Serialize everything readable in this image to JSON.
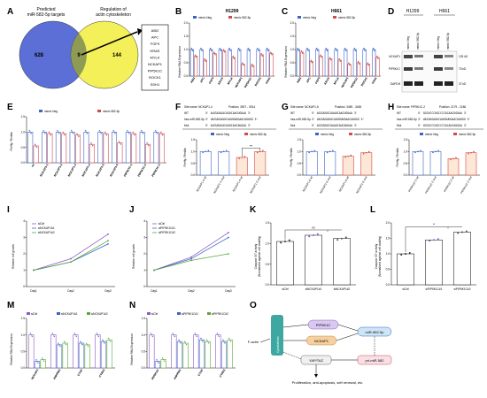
{
  "colors": {
    "neg": "#3b64c9",
    "mimic": "#d24a4a",
    "venn_left": "#5b6fd6",
    "venn_right": "#f3f05a",
    "venn_overlap": "#8f9a55",
    "pink": "#f2b6c6",
    "yellow": "#f5e27a",
    "ctrl_purple": "#8a5bc4",
    "si1": "#3b64c9",
    "si2": "#5aa83a",
    "teal": "#3fa7a1"
  },
  "panels": {
    "A": {
      "letter": "A",
      "left_label": [
        "Predicted",
        "miR-582-5p targets"
      ],
      "right_label": [
        "Regulation of",
        "actin cytoskeleton"
      ],
      "left_count": "628",
      "overlap_count": "9",
      "right_count": "144",
      "genes": [
        "ABI2",
        "APC",
        "FGF9",
        "KRAS",
        "MYLK",
        "NCKAP1",
        "PIP5K1C",
        "ROCK1",
        "SSH1"
      ]
    },
    "B": {
      "letter": "B",
      "title": "H1299",
      "ylabel": "Relative RNA Expression",
      "legend": [
        "mimic Neg",
        "mimic 582-5p"
      ],
      "genes": [
        "ABI2",
        "APC",
        "FGF9",
        "KRAS",
        "MYLK",
        "NCKAP1",
        "PIP5K1C",
        "ROCK1",
        "SSH1"
      ],
      "yticks": [
        "0.0",
        "0.5",
        "1.0",
        "1.5",
        "2.0"
      ]
    },
    "C": {
      "letter": "C",
      "title": "H661",
      "ylabel": "Relative RNA Expression",
      "legend": [
        "mimic Neg",
        "mimic 582-5p"
      ],
      "genes": [
        "ABI2",
        "APC",
        "FGF9",
        "KRAS",
        "MYLK",
        "NCKAP1",
        "PIP5K1C",
        "ROCK1",
        "SSH1"
      ],
      "yticks": [
        "0.0",
        "0.5",
        "1.0",
        "1.5",
        "2.0"
      ]
    },
    "D": {
      "letter": "D",
      "cell_lines": [
        "H1299",
        "H661"
      ],
      "lanes": [
        "mimic Neg",
        "mimic 582-5p",
        "mimic Neg",
        "mimic 582-5p"
      ],
      "bands": [
        "NCKAP1",
        "PIP5K1C",
        "GAPDH"
      ],
      "sizes": [
        "125 kD",
        "75 kD",
        "37 kD"
      ]
    },
    "E": {
      "letter": "E",
      "ylabel": "Firefly / Renilla",
      "legend": [
        "mimic Neg",
        "mimic 582-5p"
      ],
      "constructs": [
        "wt",
        "NCKAP1-1",
        "NCKAP1-2",
        "NCKAP1-3",
        "NCKAP1-4",
        "NCKAP1-5",
        "NCKAP1-6",
        "PIP5K1C-1",
        "PIP5K1C-2",
        "PIP5K1C-3"
      ],
      "yticks": [
        "0.0",
        "0.5",
        "1.0",
        "1.5"
      ]
    },
    "F": {
      "letter": "F",
      "site": "Site name: NCKAP1-4",
      "position": "Position: 3907 - 3914",
      "rows": [
        {
          "label": "WT",
          "seq": "5' AUCUGAGACAGUCAACUGUAA 3'"
        },
        {
          "label": "hsa-miR-582-5p",
          "seq": "3' UACUUGAUUCAUUGUUGAACAUUGG 5'"
        },
        {
          "label": "Mut",
          "seq": "5' AUCUGUGACAGUCAUCAUGAA 3'"
        }
      ],
      "legend": [
        "mimic Neg",
        "mimic 582-5p"
      ],
      "ylabel": "Firefly / Renilla",
      "cats": [
        "NCKAP1-4 wt",
        "NCKAP1-4 mut",
        "NCKAP1-4 wt",
        "NCKAP1-4 mut"
      ],
      "sig": "***"
    },
    "G": {
      "letter": "G",
      "site": "Site name: NCKAP1-6",
      "position": "Position: 3459 - 3465",
      "rows": [
        {
          "label": "WT",
          "seq": "5' AGCUGUGCUAAUCAACUGUAA 3'"
        },
        {
          "label": "hsa-miR-582-5p",
          "seq": "3' UACUUGAUUCAUUGUUGAACAUUGG 5'"
        },
        {
          "label": "Mut",
          "seq": "5' AGCUGUGCUAAUCAUCAUGAA 3'"
        }
      ],
      "legend": [
        "mimic Neg",
        "mimic 582-5p"
      ],
      "ylabel": "Firefly / Renilla",
      "cats": [
        "NCKAP1-6 wt",
        "NCKAP1-6 mut",
        "NCKAP1-6 wt",
        "NCKAP1-6 mut"
      ]
    },
    "H": {
      "letter": "H",
      "site": "Site name: PIP5K1C-2",
      "position": "Position: 2179 - 2186",
      "rows": [
        {
          "label": "WT",
          "seq": "5' GGCUCCCUGCCCCACAACUGUAA 3'"
        },
        {
          "label": "hsa-miR-582-5p",
          "seq": "3' UACUUGAUUCAUUGUUGAACAUUGG 5'"
        },
        {
          "label": "Mut",
          "seq": "5' GGCUCCCUGCCCCACAUCAUGAA 3'"
        }
      ],
      "legend": [
        "mimic Neg",
        "mimic 582-5p"
      ],
      "ylabel": "Firefly / Renilla",
      "cats": [
        "PIP5K1C-2 wt",
        "PIP5K1C-2 mut",
        "PIP5K1C-2 wt",
        "PIP5K1C-2 mut"
      ]
    },
    "I": {
      "letter": "I",
      "ylabel": "Relative cell growth",
      "legend": [
        "siCtrl",
        "siNCKAP1#1",
        "siNCKAP1#2"
      ],
      "days": [
        "Day1",
        "Day2",
        "Day3"
      ],
      "yticks": [
        "0",
        "1",
        "2",
        "3",
        "4"
      ]
    },
    "J": {
      "letter": "J",
      "ylabel": "Relative cell growth",
      "legend": [
        "siCtrl",
        "siPIP5K1C#1",
        "siPIP5K1C#2"
      ],
      "days": [
        "Day1",
        "Day2",
        "Day3"
      ],
      "yticks": [
        "0",
        "1",
        "2",
        "3",
        "4"
      ]
    },
    "K": {
      "letter": "K",
      "ylabel": [
        "Caspase 3/7 activity",
        "(Normalized against cell viability)"
      ],
      "cats": [
        "siCtrl",
        "siNCKAP1#1",
        "siNCKAP1#2"
      ],
      "sig": "ns"
    },
    "L": {
      "letter": "L",
      "ylabel": [
        "Caspase 3/7 activity",
        "(Normalized against cell viability)"
      ],
      "cats": [
        "siCtrl",
        "siPIP5K1C#1",
        "siPIP5K1C#2"
      ],
      "sig": "**"
    },
    "M": {
      "letter": "M",
      "ylabel": "Relative RNA Expression",
      "legend": [
        "siCtrl",
        "siNCKAP1#1",
        "siNCKAP1#2"
      ],
      "genes": [
        "NCKAP1",
        "ANKRD1",
        "CTGF",
        "CYR61"
      ]
    },
    "N": {
      "letter": "N",
      "ylabel": "Relative RNA Expression",
      "legend": [
        "siCtrl",
        "siPIP5K1C#1",
        "siPIP5K1C#2"
      ],
      "genes": [
        "PIP5K1C",
        "ANKRD1",
        "CTGF",
        "CYR61"
      ]
    },
    "O": {
      "letter": "O",
      "nodes": {
        "factin": "F-actin",
        "cyto": "Cytoskeleton",
        "pip": "PIP5K1C",
        "nck": "NCKAP1",
        "mir": "miR-582-5p",
        "yap": "YAP/TAZ",
        "primir": "pri-miR-582"
      },
      "outcome": "Proliferation, anti-apoptosis, self renewal, etc."
    }
  },
  "chart_data": [
    {
      "type": "bar",
      "panel": "B",
      "title": "H1299",
      "ylabel": "Relative RNA Expression",
      "ylim": [
        0,
        2.0
      ],
      "categories": [
        "ABI2",
        "APC",
        "FGF9",
        "KRAS",
        "MYLK",
        "NCKAP1",
        "PIP5K1C",
        "ROCK1",
        "SSH1"
      ],
      "series": [
        {
          "name": "mimic Neg",
          "values": [
            1,
            1,
            1,
            1,
            1,
            1,
            1,
            1,
            1
          ]
        },
        {
          "name": "mimic 582-5p",
          "values": [
            0.75,
            0.6,
            0.85,
            0.95,
            0.7,
            0.45,
            0.4,
            0.8,
            0.85
          ]
        }
      ]
    },
    {
      "type": "bar",
      "panel": "C",
      "title": "H661",
      "ylabel": "Relative RNA Expression",
      "ylim": [
        0,
        2.0
      ],
      "categories": [
        "ABI2",
        "APC",
        "FGF9",
        "KRAS",
        "MYLK",
        "NCKAP1",
        "PIP5K1C",
        "ROCK1",
        "SSH1"
      ],
      "series": [
        {
          "name": "mimic Neg",
          "values": [
            1,
            1,
            1,
            1,
            1,
            1,
            1,
            1,
            1
          ]
        },
        {
          "name": "mimic 582-5p",
          "values": [
            0.9,
            0.55,
            0.75,
            0.65,
            0.6,
            0.45,
            0.5,
            0.45,
            0.7
          ]
        }
      ]
    },
    {
      "type": "bar",
      "panel": "E",
      "ylabel": "Firefly / Renilla",
      "ylim": [
        0,
        1.5
      ],
      "categories": [
        "wt",
        "NCKAP1-1",
        "NCKAP1-2",
        "NCKAP1-3",
        "NCKAP1-4",
        "NCKAP1-5",
        "NCKAP1-6",
        "PIP5K1C-1",
        "PIP5K1C-2",
        "PIP5K1C-3"
      ],
      "series": [
        {
          "name": "mimic Neg",
          "values": [
            1,
            1,
            1,
            1,
            1,
            1,
            1,
            1,
            1,
            1
          ]
        },
        {
          "name": "mimic 582-5p",
          "values": [
            0.55,
            0.95,
            0.95,
            0.9,
            0.6,
            0.95,
            0.65,
            0.95,
            0.6,
            0.95
          ]
        }
      ]
    },
    {
      "type": "bar",
      "panel": "F",
      "ylabel": "Firefly / Renilla",
      "ylim": [
        0,
        1.5
      ],
      "categories": [
        "NCKAP1-4 wt",
        "NCKAP1-4 mut",
        "NCKAP1-4 wt",
        "NCKAP1-4 mut"
      ],
      "values": [
        1.0,
        1.0,
        0.75,
        1.0
      ]
    },
    {
      "type": "bar",
      "panel": "G",
      "ylabel": "Firefly / Renilla",
      "ylim": [
        0,
        1.5
      ],
      "categories": [
        "NCKAP1-6 wt",
        "NCKAP1-6 mut",
        "NCKAP1-6 wt",
        "NCKAP1-6 mut"
      ],
      "values": [
        1.0,
        1.0,
        0.8,
        0.95
      ]
    },
    {
      "type": "bar",
      "panel": "H",
      "ylabel": "Firefly / Renilla",
      "ylim": [
        0,
        1.5
      ],
      "categories": [
        "PIP5K1C-2 wt",
        "PIP5K1C-2 mut",
        "PIP5K1C-2 wt",
        "PIP5K1C-2 mut"
      ],
      "values": [
        1.0,
        1.0,
        0.7,
        0.95
      ]
    },
    {
      "type": "line",
      "panel": "I",
      "ylabel": "Relative cell growth",
      "ylim": [
        0,
        4
      ],
      "categories": [
        "Day1",
        "Day2",
        "Day3"
      ],
      "series": [
        {
          "name": "siCtrl",
          "values": [
            1.0,
            1.7,
            3.2
          ]
        },
        {
          "name": "siNCKAP1#1",
          "values": [
            1.0,
            1.5,
            2.6
          ]
        },
        {
          "name": "siNCKAP1#2",
          "values": [
            1.0,
            1.5,
            2.8
          ]
        }
      ]
    },
    {
      "type": "line",
      "panel": "J",
      "ylabel": "Relative cell growth",
      "ylim": [
        0,
        4
      ],
      "categories": [
        "Day1",
        "Day2",
        "Day3"
      ],
      "series": [
        {
          "name": "siCtrl",
          "values": [
            1.0,
            1.8,
            3.3
          ]
        },
        {
          "name": "siPIP5K1C#1",
          "values": [
            1.0,
            1.7,
            3.0
          ]
        },
        {
          "name": "siPIP5K1C#2",
          "values": [
            1.0,
            1.6,
            2.0
          ]
        }
      ]
    },
    {
      "type": "bar",
      "panel": "K",
      "ylim": [
        0,
        1.5
      ],
      "categories": [
        "siCtrl",
        "siNCKAP1#1",
        "siNCKAP1#2"
      ],
      "values": [
        1.05,
        1.2,
        1.12
      ]
    },
    {
      "type": "bar",
      "panel": "L",
      "ylim": [
        0,
        2.0
      ],
      "categories": [
        "siCtrl",
        "siPIP5K1C#1",
        "siPIP5K1C#2"
      ],
      "values": [
        1.0,
        1.45,
        1.7
      ]
    },
    {
      "type": "bar",
      "panel": "M",
      "ylabel": "Relative RNA Expression",
      "ylim": [
        0,
        1.5
      ],
      "categories": [
        "NCKAP1",
        "ANKRD1",
        "CTGF",
        "CYR61"
      ],
      "series": [
        {
          "name": "siCtrl",
          "values": [
            1,
            1,
            1,
            1
          ]
        },
        {
          "name": "siNCKAP1#1",
          "values": [
            0.2,
            0.7,
            0.75,
            0.8
          ]
        },
        {
          "name": "siNCKAP1#2",
          "values": [
            0.25,
            0.75,
            0.7,
            0.85
          ]
        }
      ]
    },
    {
      "type": "bar",
      "panel": "N",
      "ylabel": "Relative RNA Expression",
      "ylim": [
        0,
        1.5
      ],
      "categories": [
        "PIP5K1C",
        "ANKRD1",
        "CTGF",
        "CYR61"
      ],
      "series": [
        {
          "name": "siCtrl",
          "values": [
            1,
            1,
            1,
            1
          ]
        },
        {
          "name": "siPIP5K1C#1",
          "values": [
            0.2,
            0.8,
            0.85,
            0.8
          ]
        },
        {
          "name": "siPIP5K1C#2",
          "values": [
            0.25,
            0.75,
            0.8,
            0.85
          ]
        }
      ]
    }
  ]
}
